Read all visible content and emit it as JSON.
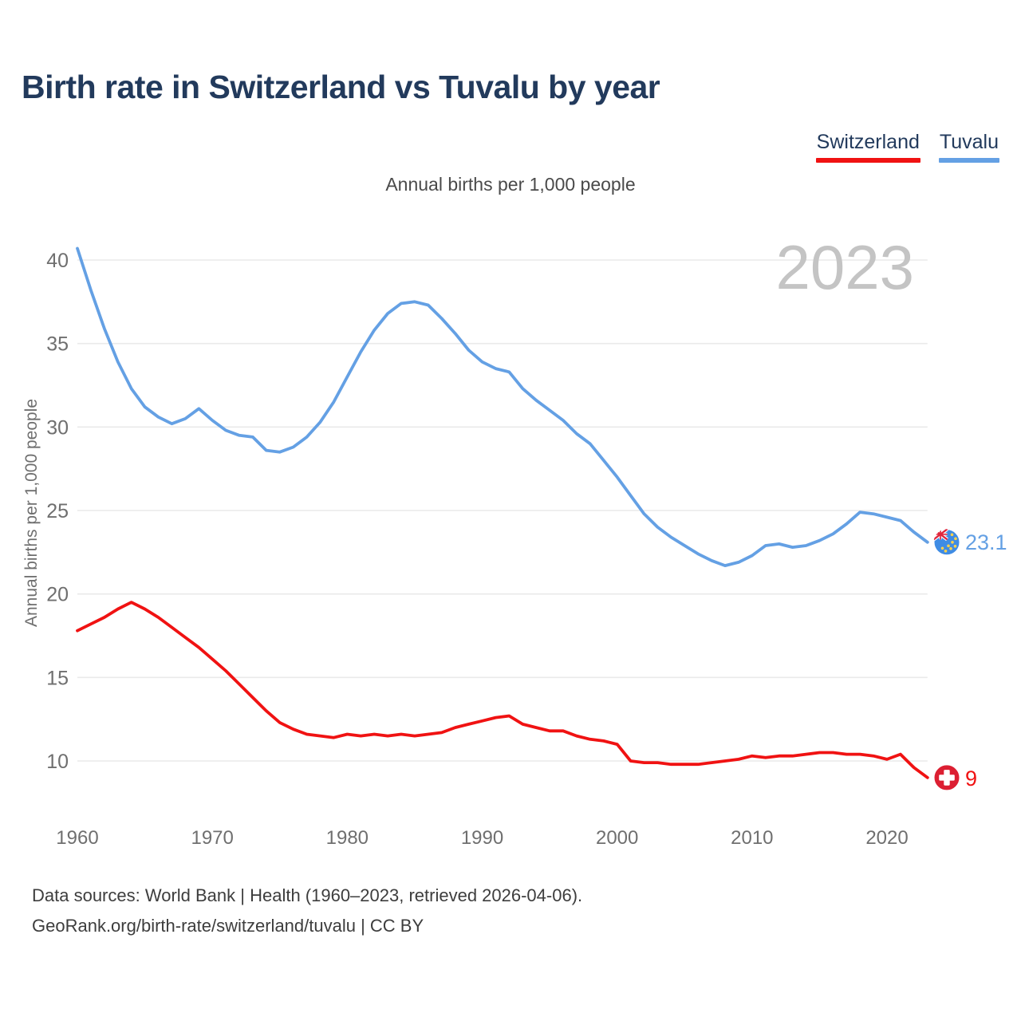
{
  "title": "Birth rate in Switzerland vs Tuvalu by year",
  "subtitle": "Annual births per 1,000 people",
  "watermark": "2023",
  "legend": [
    {
      "label": "Switzerland",
      "color": "#f01212"
    },
    {
      "label": "Tuvalu",
      "color": "#64a0e4"
    }
  ],
  "y_axis": {
    "title": "Annual births per 1,000 people",
    "ticks": [
      40,
      35,
      30,
      25,
      20,
      15,
      10
    ]
  },
  "x_axis": {
    "ticks": [
      1960,
      1970,
      1980,
      1990,
      2000,
      2010,
      2020
    ]
  },
  "footer": {
    "line1": "Data sources: World Bank | Health (1960–2023, retrieved 2026-04-06).",
    "line2": "GeoRank.org/birth-rate/switzerland/tuvalu | CC BY"
  },
  "chart_data": {
    "type": "line",
    "title": "Birth rate in Switzerland vs Tuvalu by year",
    "ylabel": "Annual births per 1,000 people",
    "xlim": [
      1960,
      2023
    ],
    "ylim": [
      8,
      41
    ],
    "grid": "horizontal",
    "legend_position": "top-right",
    "x_start": 1960,
    "x_step": 1,
    "series": [
      {
        "name": "Switzerland",
        "color": "#f01212",
        "flag_color": "#dc1f32",
        "end_label": "9",
        "values": [
          17.8,
          18.2,
          18.6,
          19.1,
          19.5,
          19.1,
          18.6,
          18.0,
          17.4,
          16.8,
          16.1,
          15.4,
          14.6,
          13.8,
          13.0,
          12.3,
          11.9,
          11.6,
          11.5,
          11.4,
          11.6,
          11.5,
          11.6,
          11.5,
          11.6,
          11.5,
          11.6,
          11.7,
          12.0,
          12.2,
          12.4,
          12.6,
          12.7,
          12.2,
          12.0,
          11.8,
          11.8,
          11.5,
          11.3,
          11.2,
          11.0,
          10.0,
          9.9,
          9.9,
          9.8,
          9.8,
          9.8,
          9.9,
          10.0,
          10.1,
          10.3,
          10.2,
          10.3,
          10.3,
          10.4,
          10.5,
          10.5,
          10.4,
          10.4,
          10.3,
          10.1,
          10.4,
          9.6,
          9.0
        ]
      },
      {
        "name": "Tuvalu",
        "color": "#64a0e4",
        "flag_color": "#3f8ce4",
        "end_label": "23.1",
        "values": [
          40.7,
          38.2,
          35.9,
          33.9,
          32.3,
          31.2,
          30.6,
          30.2,
          30.5,
          31.1,
          30.4,
          29.8,
          29.5,
          29.4,
          28.6,
          28.5,
          28.8,
          29.4,
          30.3,
          31.5,
          33.0,
          34.5,
          35.8,
          36.8,
          37.4,
          37.5,
          37.3,
          36.5,
          35.6,
          34.6,
          33.9,
          33.5,
          33.3,
          32.3,
          31.6,
          31.0,
          30.4,
          29.6,
          29.0,
          28.0,
          27.0,
          25.9,
          24.8,
          24.0,
          23.4,
          22.9,
          22.4,
          22.0,
          21.7,
          21.9,
          22.3,
          22.9,
          23.0,
          22.8,
          22.9,
          23.2,
          23.6,
          24.2,
          24.9,
          24.8,
          24.6,
          24.4,
          23.7,
          23.1
        ]
      }
    ]
  }
}
